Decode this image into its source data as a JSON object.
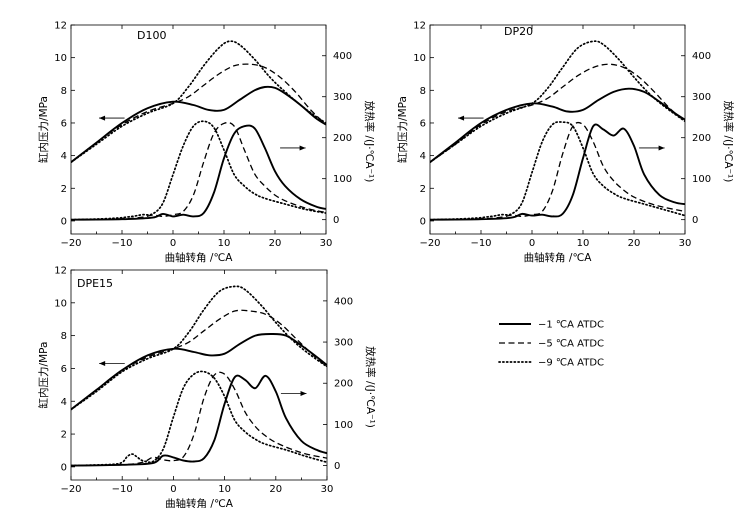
{
  "chart_data": [
    {
      "type": "line",
      "title": "D100",
      "xlabel": "曲轴转角 /℃A",
      "ylabel_left": "缸内压力/MPa",
      "ylabel_right": "放热率 /(J·℃A⁻¹)",
      "xlim": [
        -20,
        30
      ],
      "ylim_left": [
        -0.8,
        12
      ],
      "ylim_right": [
        -35,
        475
      ],
      "xticks": [
        "−20",
        "−10",
        "0",
        "10",
        "20",
        "30"
      ],
      "yticks_left": [
        "0",
        "2",
        "4",
        "6",
        "8",
        "10",
        "12"
      ],
      "yticks_right": [
        "0",
        "100",
        "200",
        "300",
        "400"
      ],
      "series": [
        {
          "name": "−1 ℃A ATDC",
          "axis": "left",
          "style": "solid",
          "x": [
            -20,
            -15,
            -10,
            -5,
            0,
            4,
            7,
            10,
            13,
            16,
            18,
            20,
            22,
            25,
            28,
            30
          ],
          "y": [
            3.6,
            4.8,
            6.0,
            6.9,
            7.3,
            7.1,
            6.8,
            6.8,
            7.4,
            8.0,
            8.2,
            8.15,
            7.8,
            7.1,
            6.3,
            5.9
          ]
        },
        {
          "name": "−5 ℃A ATDC",
          "axis": "left",
          "style": "dashed",
          "x": [
            -20,
            -15,
            -10,
            -5,
            0,
            3,
            6,
            9,
            12,
            15,
            18,
            21,
            24,
            27,
            30
          ],
          "y": [
            3.6,
            4.8,
            5.9,
            6.7,
            7.2,
            7.6,
            8.3,
            9.0,
            9.5,
            9.6,
            9.4,
            8.8,
            7.9,
            6.8,
            5.9
          ]
        },
        {
          "name": "−9 ℃A ATDC",
          "axis": "left",
          "style": "dotted",
          "x": [
            -20,
            -15,
            -10,
            -5,
            0,
            3,
            6,
            9,
            11,
            13,
            16,
            19,
            22,
            25,
            28,
            30
          ],
          "y": [
            3.6,
            4.7,
            5.8,
            6.6,
            7.2,
            8.2,
            9.5,
            10.6,
            11.0,
            10.8,
            9.9,
            8.8,
            7.9,
            7.1,
            6.4,
            6.0
          ]
        },
        {
          "name": "−1 ℃A ATDC",
          "axis": "right",
          "style": "solid",
          "x": [
            -20,
            -10,
            -4,
            -2,
            0,
            2,
            4,
            6,
            8,
            10,
            12,
            14,
            16,
            18,
            20,
            22,
            25,
            28,
            30
          ],
          "y": [
            0,
            1,
            5,
            14,
            8,
            12,
            8,
            16,
            65,
            150,
            210,
            228,
            223,
            175,
            118,
            82,
            50,
            32,
            26
          ]
        },
        {
          "name": "−5 ℃A ATDC",
          "axis": "right",
          "style": "dashed",
          "x": [
            -20,
            -10,
            -6,
            -4,
            -2,
            0,
            2,
            4,
            6,
            8,
            10,
            12,
            14,
            16,
            18,
            20,
            22,
            25,
            28,
            30
          ],
          "y": [
            0,
            2,
            6,
            11,
            8,
            12,
            20,
            60,
            140,
            210,
            235,
            228,
            170,
            112,
            82,
            60,
            46,
            32,
            22,
            18
          ]
        },
        {
          "name": "−9 ℃A ATDC",
          "axis": "right",
          "style": "dotted",
          "x": [
            -20,
            -12,
            -8,
            -6,
            -4,
            -2,
            0,
            2,
            4,
            6,
            8,
            10,
            12,
            14,
            16,
            18,
            22,
            26,
            30
          ],
          "y": [
            0,
            3,
            8,
            12,
            14,
            40,
            110,
            180,
            228,
            240,
            225,
            170,
            110,
            82,
            63,
            52,
            38,
            25,
            16
          ]
        }
      ]
    },
    {
      "type": "line",
      "title": "DP20",
      "xlabel": "曲轴转角 /℃A",
      "ylabel_left": "缸内压力/MPa",
      "ylabel_right": "放热率 /(J·℃A⁻¹)",
      "xlim": [
        -20,
        30
      ],
      "ylim_left": [
        -0.8,
        12
      ],
      "ylim_right": [
        -35,
        475
      ],
      "xticks": [
        "−20",
        "−10",
        "0",
        "10",
        "20",
        "30"
      ],
      "yticks_left": [
        "0",
        "2",
        "4",
        "6",
        "8",
        "10",
        "12"
      ],
      "yticks_right": [
        "0",
        "100",
        "200",
        "300",
        "400"
      ],
      "series": [
        {
          "name": "−1 ℃A ATDC",
          "axis": "left",
          "style": "solid",
          "x": [
            -20,
            -15,
            -10,
            -5,
            0,
            4,
            7,
            10,
            13,
            16,
            19,
            22,
            25,
            28,
            30
          ],
          "y": [
            3.6,
            4.8,
            6.0,
            6.8,
            7.2,
            7.0,
            6.7,
            6.8,
            7.4,
            7.9,
            8.1,
            7.9,
            7.3,
            6.6,
            6.2
          ]
        },
        {
          "name": "−5 ℃A ATDC",
          "axis": "left",
          "style": "dashed",
          "x": [
            -20,
            -15,
            -10,
            -5,
            0,
            3,
            6,
            9,
            12,
            15,
            18,
            21,
            24,
            27,
            30
          ],
          "y": [
            3.6,
            4.7,
            5.9,
            6.7,
            7.1,
            7.5,
            8.2,
            8.9,
            9.4,
            9.6,
            9.4,
            8.8,
            7.9,
            6.9,
            6.1
          ]
        },
        {
          "name": "−9 ℃A ATDC",
          "axis": "left",
          "style": "dotted",
          "x": [
            -20,
            -15,
            -10,
            -5,
            0,
            3,
            6,
            9,
            12,
            14,
            17,
            20,
            23,
            26,
            30
          ],
          "y": [
            3.6,
            4.7,
            5.8,
            6.6,
            7.2,
            8.1,
            9.4,
            10.6,
            11.0,
            10.8,
            9.9,
            8.8,
            7.8,
            7.0,
            6.1
          ]
        },
        {
          "name": "−1 ℃A ATDC",
          "axis": "right",
          "style": "solid",
          "x": [
            -20,
            -10,
            -4,
            -2,
            0,
            2,
            4,
            6,
            8,
            10,
            12,
            14,
            16,
            18,
            20,
            22,
            25,
            28,
            30
          ],
          "y": [
            0,
            1,
            5,
            14,
            10,
            12,
            8,
            14,
            60,
            150,
            228,
            220,
            205,
            222,
            180,
            110,
            60,
            42,
            38
          ]
        },
        {
          "name": "−5 ℃A ATDC",
          "axis": "right",
          "style": "dashed",
          "x": [
            -20,
            -10,
            -6,
            -4,
            -2,
            0,
            2,
            4,
            6,
            8,
            10,
            12,
            14,
            16,
            18,
            20,
            23,
            26,
            30
          ],
          "y": [
            0,
            2,
            6,
            11,
            8,
            12,
            20,
            70,
            160,
            228,
            232,
            190,
            130,
            95,
            72,
            55,
            40,
            30,
            20
          ]
        },
        {
          "name": "−9 ℃A ATDC",
          "axis": "right",
          "style": "dotted",
          "x": [
            -20,
            -12,
            -8,
            -6,
            -4,
            -2,
            0,
            2,
            4,
            6,
            8,
            10,
            12,
            14,
            16,
            18,
            22,
            26,
            30
          ],
          "y": [
            0,
            3,
            8,
            12,
            14,
            40,
            115,
            190,
            232,
            238,
            228,
            175,
            112,
            82,
            64,
            52,
            38,
            24,
            10
          ]
        }
      ]
    },
    {
      "type": "line",
      "title": "DPE15",
      "xlabel": "曲轴转角 /℃A",
      "ylabel_left": "缸内压力/MPa",
      "ylabel_right": "放热率 /(J·℃A⁻¹)",
      "xlim": [
        -20,
        30
      ],
      "ylim_left": [
        -0.8,
        12
      ],
      "ylim_right": [
        -35,
        475
      ],
      "xticks": [
        "−20",
        "−10",
        "0",
        "10",
        "20",
        "30"
      ],
      "yticks_left": [
        "0",
        "2",
        "4",
        "6",
        "8",
        "10",
        "12"
      ],
      "yticks_right": [
        "0",
        "100",
        "200",
        "300",
        "400"
      ],
      "series": [
        {
          "name": "−1 ℃A ATDC",
          "axis": "left",
          "style": "solid",
          "x": [
            -20,
            -15,
            -10,
            -5,
            0,
            4,
            7,
            10,
            13,
            16,
            19,
            22,
            25,
            28,
            30
          ],
          "y": [
            3.5,
            4.7,
            5.9,
            6.8,
            7.2,
            7.0,
            6.8,
            6.9,
            7.5,
            8.0,
            8.1,
            8.0,
            7.4,
            6.7,
            6.2
          ]
        },
        {
          "name": "−5 ℃A ATDC",
          "axis": "left",
          "style": "dashed",
          "x": [
            -20,
            -15,
            -10,
            -5,
            0,
            3,
            6,
            9,
            12,
            15,
            18,
            21,
            24,
            27,
            30
          ],
          "y": [
            3.5,
            4.7,
            5.9,
            6.7,
            7.2,
            7.6,
            8.3,
            9.0,
            9.5,
            9.5,
            9.3,
            8.7,
            7.8,
            6.9,
            6.1
          ]
        },
        {
          "name": "−9 ℃A ATDC",
          "axis": "left",
          "style": "dotted",
          "x": [
            -20,
            -15,
            -10,
            -5,
            0,
            3,
            6,
            9,
            12,
            14,
            17,
            20,
            23,
            26,
            30
          ],
          "y": [
            3.5,
            4.6,
            5.8,
            6.6,
            7.2,
            8.2,
            9.6,
            10.7,
            11.0,
            10.8,
            9.9,
            8.8,
            7.8,
            7.0,
            6.1
          ]
        },
        {
          "name": "−1 ℃A ATDC",
          "axis": "right",
          "style": "solid",
          "x": [
            -20,
            -10,
            -4,
            -2,
            0,
            2,
            4,
            6,
            8,
            10,
            12,
            14,
            16,
            18,
            20,
            22,
            25,
            28,
            30
          ],
          "y": [
            0,
            2,
            6,
            24,
            20,
            12,
            10,
            18,
            62,
            150,
            215,
            208,
            188,
            218,
            180,
            115,
            60,
            38,
            30
          ]
        },
        {
          "name": "−5 ℃A ATDC",
          "axis": "right",
          "style": "dashed",
          "x": [
            -20,
            -10,
            -6,
            -4,
            -2,
            0,
            2,
            4,
            6,
            8,
            10,
            12,
            14,
            16,
            18,
            20,
            23,
            26,
            30
          ],
          "y": [
            0,
            2,
            8,
            20,
            14,
            12,
            22,
            75,
            165,
            220,
            222,
            185,
            130,
            95,
            72,
            56,
            40,
            28,
            18
          ]
        },
        {
          "name": "−9 ℃A ATDC",
          "axis": "right",
          "style": "dotted",
          "x": [
            -20,
            -12,
            -10,
            -9,
            -8,
            -7,
            -6,
            -4,
            -2,
            0,
            2,
            4,
            6,
            8,
            10,
            12,
            14,
            16,
            18,
            22,
            26,
            30
          ],
          "y": [
            0,
            3,
            8,
            22,
            28,
            20,
            12,
            10,
            40,
            118,
            190,
            222,
            228,
            212,
            168,
            110,
            82,
            64,
            52,
            38,
            22,
            8
          ]
        }
      ]
    }
  ],
  "legend": {
    "items": [
      {
        "label": "−1 ℃A ATDC",
        "style": "solid"
      },
      {
        "label": "−5 ℃A ATDC",
        "style": "dashed"
      },
      {
        "label": "−9 ℃A ATDC",
        "style": "dotted"
      }
    ]
  }
}
